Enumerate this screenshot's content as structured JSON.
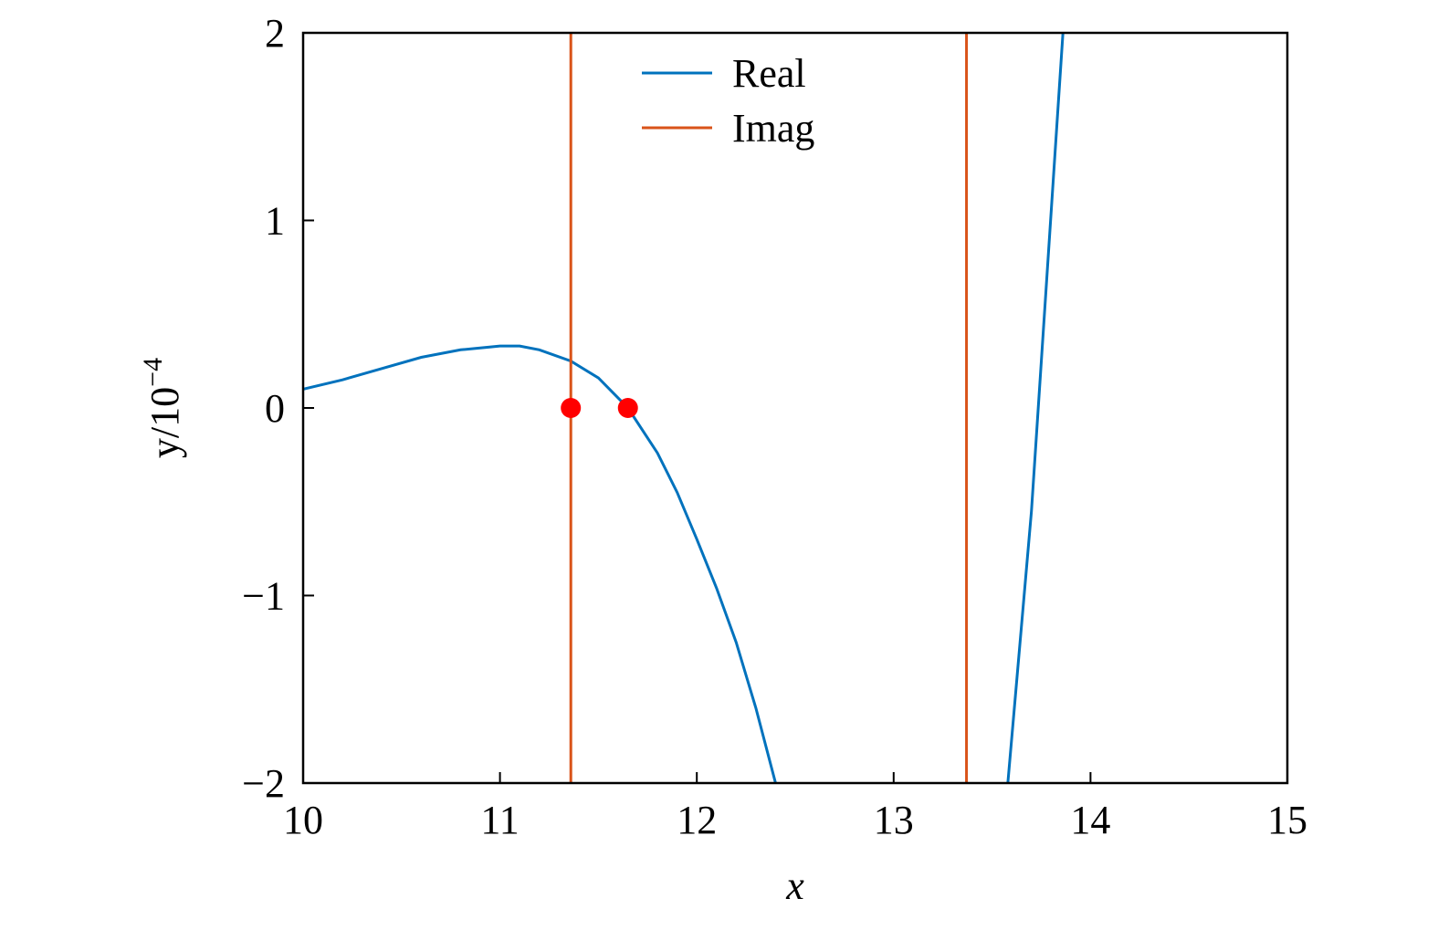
{
  "chart_data": {
    "type": "line",
    "xlabel": "x",
    "ylabel": {
      "base": "y/10",
      "exponent": "−4"
    },
    "xlim": [
      10,
      15
    ],
    "ylim": [
      -2,
      2
    ],
    "xticks": [
      10,
      11,
      12,
      13,
      14,
      15
    ],
    "yticks": [
      {
        "value": -2,
        "label": "−2"
      },
      {
        "value": -1,
        "label": "−1"
      },
      0,
      1,
      2
    ],
    "legend": "north",
    "series": [
      {
        "name": "Real",
        "color": "#0072bd",
        "x": [
          10,
          10.2,
          10.4,
          10.6,
          10.8,
          11.0,
          11.1,
          11.2,
          11.36,
          11.5,
          11.65,
          11.8,
          11.9,
          12.0,
          12.1,
          12.2,
          12.3,
          12.4,
          13.0,
          13.58,
          13.7,
          13.86
        ],
        "values": [
          0.1,
          0.15,
          0.21,
          0.27,
          0.31,
          0.33,
          0.33,
          0.31,
          0.25,
          0.16,
          0,
          -0.24,
          -0.45,
          -0.7,
          -0.96,
          -1.25,
          -1.6,
          -2,
          null,
          -2,
          -0.55,
          2
        ]
      },
      {
        "name": "Imag",
        "color": "#d95319",
        "x": [
          11.36,
          11.36,
          11.36,
          13.37,
          13.37
        ],
        "values": [
          -2,
          2,
          null,
          2,
          -2
        ]
      }
    ],
    "points": {
      "color": "#ff0000",
      "x": [
        11.36,
        11.65
      ],
      "values": [
        0,
        0
      ]
    }
  }
}
